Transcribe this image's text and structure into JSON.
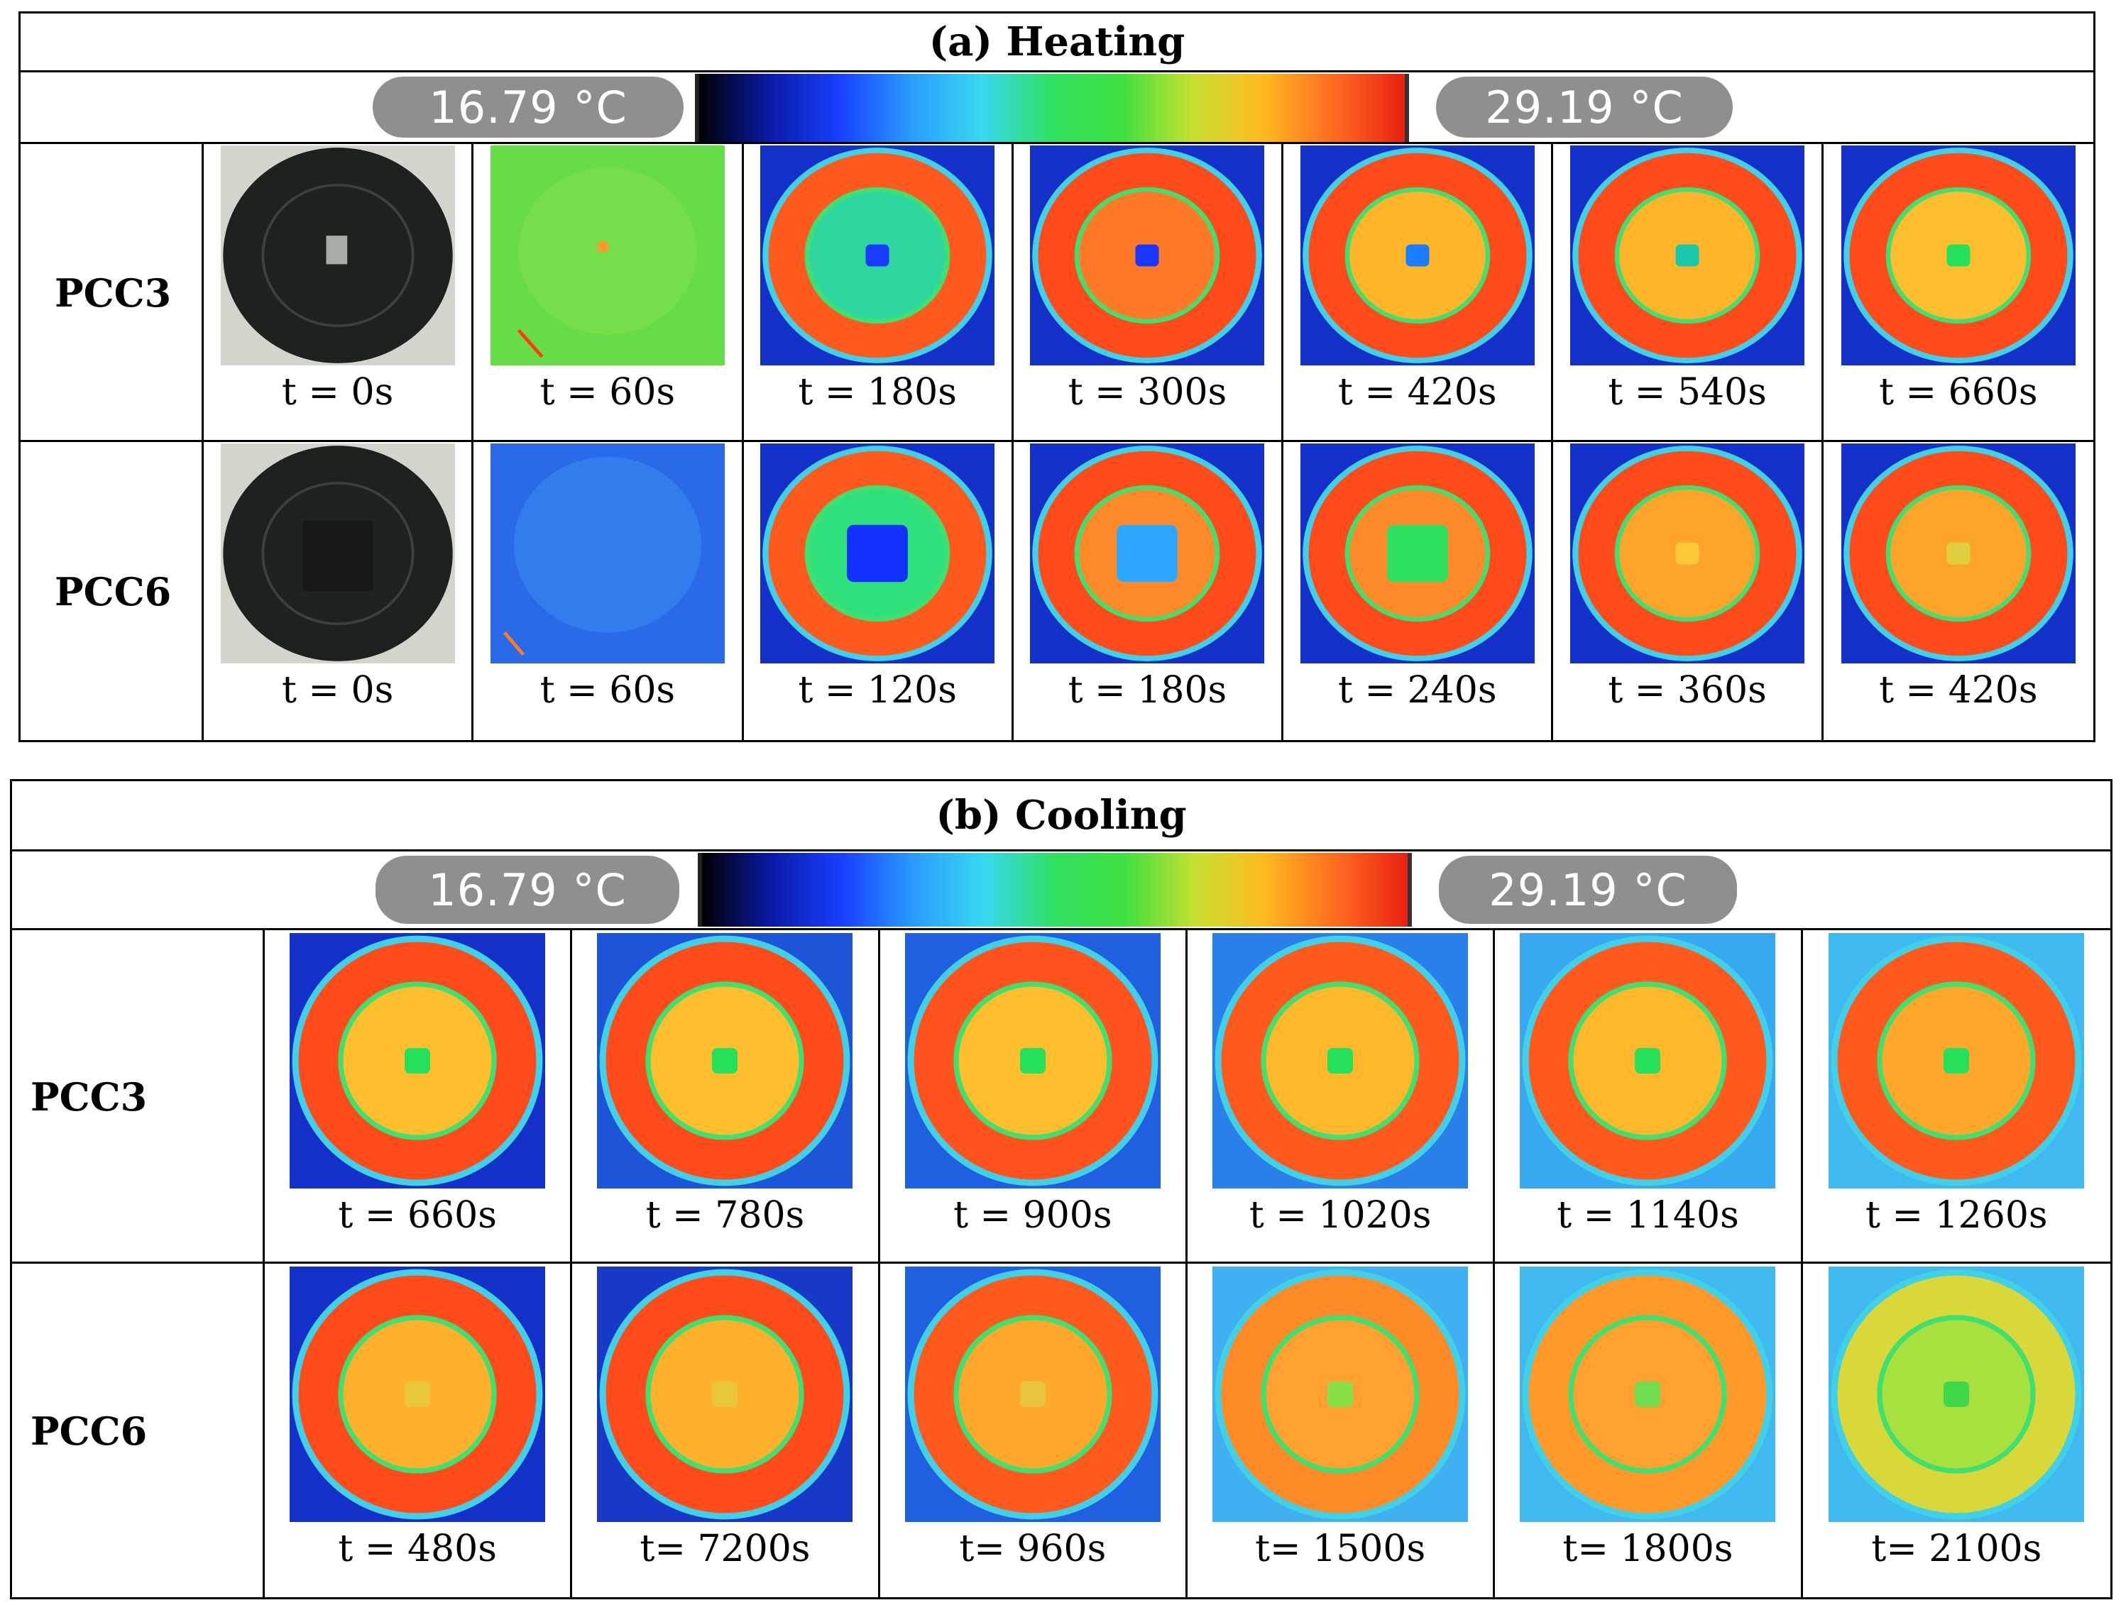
{
  "panels": [
    {
      "title": "(a)   Heating",
      "scale_min": "16.79 °C",
      "scale_max": "29.19 °C",
      "rows": [
        {
          "label": "PCC3",
          "frames": [
            {
              "time": "t = 0s",
              "kind": "photo",
              "core": "light"
            },
            {
              "time": "t = 60s",
              "kind": "uniform-green"
            },
            {
              "time": "t = 180s",
              "kind": "thermal",
              "core": "#1a3cff",
              "inner": "#2fd6a0",
              "outer": "#ff5a1e",
              "bg": "#1530c8"
            },
            {
              "time": "t = 300s",
              "kind": "thermal",
              "core": "#1838ff",
              "inner": "#ff7a28",
              "outer": "#ff4a1a",
              "bg": "#1530c8"
            },
            {
              "time": "t = 420s",
              "kind": "thermal",
              "core": "#1a7dff",
              "inner": "#ffb42a",
              "outer": "#ff4a1a",
              "bg": "#1530c8"
            },
            {
              "time": "t = 540s",
              "kind": "thermal",
              "core": "#18c8a8",
              "inner": "#ffb42a",
              "outer": "#ff4a1a",
              "bg": "#1530c8"
            },
            {
              "time": "t = 660s",
              "kind": "thermal",
              "core": "#25e05a",
              "inner": "#ffbe2e",
              "outer": "#ff4a1a",
              "bg": "#1530c8"
            }
          ]
        },
        {
          "label": "PCC6",
          "frames": [
            {
              "time": "t = 0s",
              "kind": "photo",
              "core": "dark"
            },
            {
              "time": "t = 60s",
              "kind": "uniform-blue"
            },
            {
              "time": "t = 120s",
              "kind": "thermal",
              "core": "#1432ff",
              "inner": "#30e07a",
              "outer": "#ff5a1e",
              "bg": "#1530c8",
              "square": true
            },
            {
              "time": "t = 180s",
              "kind": "thermal",
              "core": "#2ea8ff",
              "inner": "#ff8a2a",
              "outer": "#ff4a1a",
              "bg": "#1530c8",
              "square": true
            },
            {
              "time": "t = 240s",
              "kind": "thermal",
              "core": "#2fe060",
              "inner": "#ff8a2a",
              "outer": "#ff4a1a",
              "bg": "#1530c8",
              "square": true
            },
            {
              "time": "t = 360s",
              "kind": "thermal",
              "core": "#ffc83a",
              "inner": "#ffa42a",
              "outer": "#ff4a1a",
              "bg": "#1530c8"
            },
            {
              "time": "t = 420s",
              "kind": "thermal",
              "core": "#e0d040",
              "inner": "#ffa42a",
              "outer": "#ff4a1a",
              "bg": "#1530c8"
            }
          ]
        }
      ]
    },
    {
      "title": "(b)  Cooling",
      "scale_min": "16.79 °C",
      "scale_max": "29.19 °C",
      "rows": [
        {
          "label": "PCC3",
          "frames": [
            {
              "time": "t = 660s",
              "kind": "thermal",
              "core": "#25e05a",
              "inner": "#ffbe2e",
              "outer": "#ff4a1a",
              "bg": "#1530c8"
            },
            {
              "time": "t = 780s",
              "kind": "thermal",
              "core": "#25e05a",
              "inner": "#ffbe2e",
              "outer": "#ff4a1a",
              "bg": "#1e55d8"
            },
            {
              "time": "t = 900s",
              "kind": "thermal",
              "core": "#25e05a",
              "inner": "#ffbe2e",
              "outer": "#ff521c",
              "bg": "#2060e0"
            },
            {
              "time": "t = 1020s",
              "kind": "thermal",
              "core": "#25e05a",
              "inner": "#ffb82c",
              "outer": "#ff5a1e",
              "bg": "#2a80e8"
            },
            {
              "time": "t = 1140s",
              "kind": "thermal",
              "core": "#25e05a",
              "inner": "#ffb82c",
              "outer": "#ff5a1e",
              "bg": "#38a8f0"
            },
            {
              "time": "t = 1260s",
              "kind": "thermal",
              "core": "#25e05a",
              "inner": "#ffa82c",
              "outer": "#ff5a1e",
              "bg": "#40b8f0"
            }
          ]
        },
        {
          "label": "PCC6",
          "frames": [
            {
              "time": "t = 480s",
              "kind": "thermal",
              "core": "#e8c83a",
              "inner": "#ffb02c",
              "outer": "#ff4a1a",
              "bg": "#1530c8"
            },
            {
              "time": "t= 7200s",
              "kind": "thermal",
              "core": "#e8c83a",
              "inner": "#ffb02c",
              "outer": "#ff4a1a",
              "bg": "#1838c8"
            },
            {
              "time": "t= 960s",
              "kind": "thermal",
              "core": "#e8c43a",
              "inner": "#ffa82c",
              "outer": "#ff5a1e",
              "bg": "#2060e0"
            },
            {
              "time": "t= 1500s",
              "kind": "thermal",
              "core": "#88e048",
              "inner": "#ffa030",
              "outer": "#ff8a28",
              "bg": "#40b0f0"
            },
            {
              "time": "t= 1800s",
              "kind": "thermal",
              "core": "#70dc50",
              "inner": "#ffa030",
              "outer": "#ff9a2a",
              "bg": "#40b8f0"
            },
            {
              "time": "t= 2100s",
              "kind": "thermal",
              "core": "#40d84a",
              "inner": "#a8e040",
              "outer": "#d8d83a",
              "bg": "#40b8f0"
            }
          ]
        }
      ]
    }
  ],
  "colorbar": {
    "stops": [
      "#000000",
      "#0a1aa8",
      "#1840ff",
      "#2a9cff",
      "#38d8f0",
      "#30e060",
      "#40e040",
      "#c8e030",
      "#ffb820",
      "#ff6a20",
      "#e82010"
    ]
  }
}
